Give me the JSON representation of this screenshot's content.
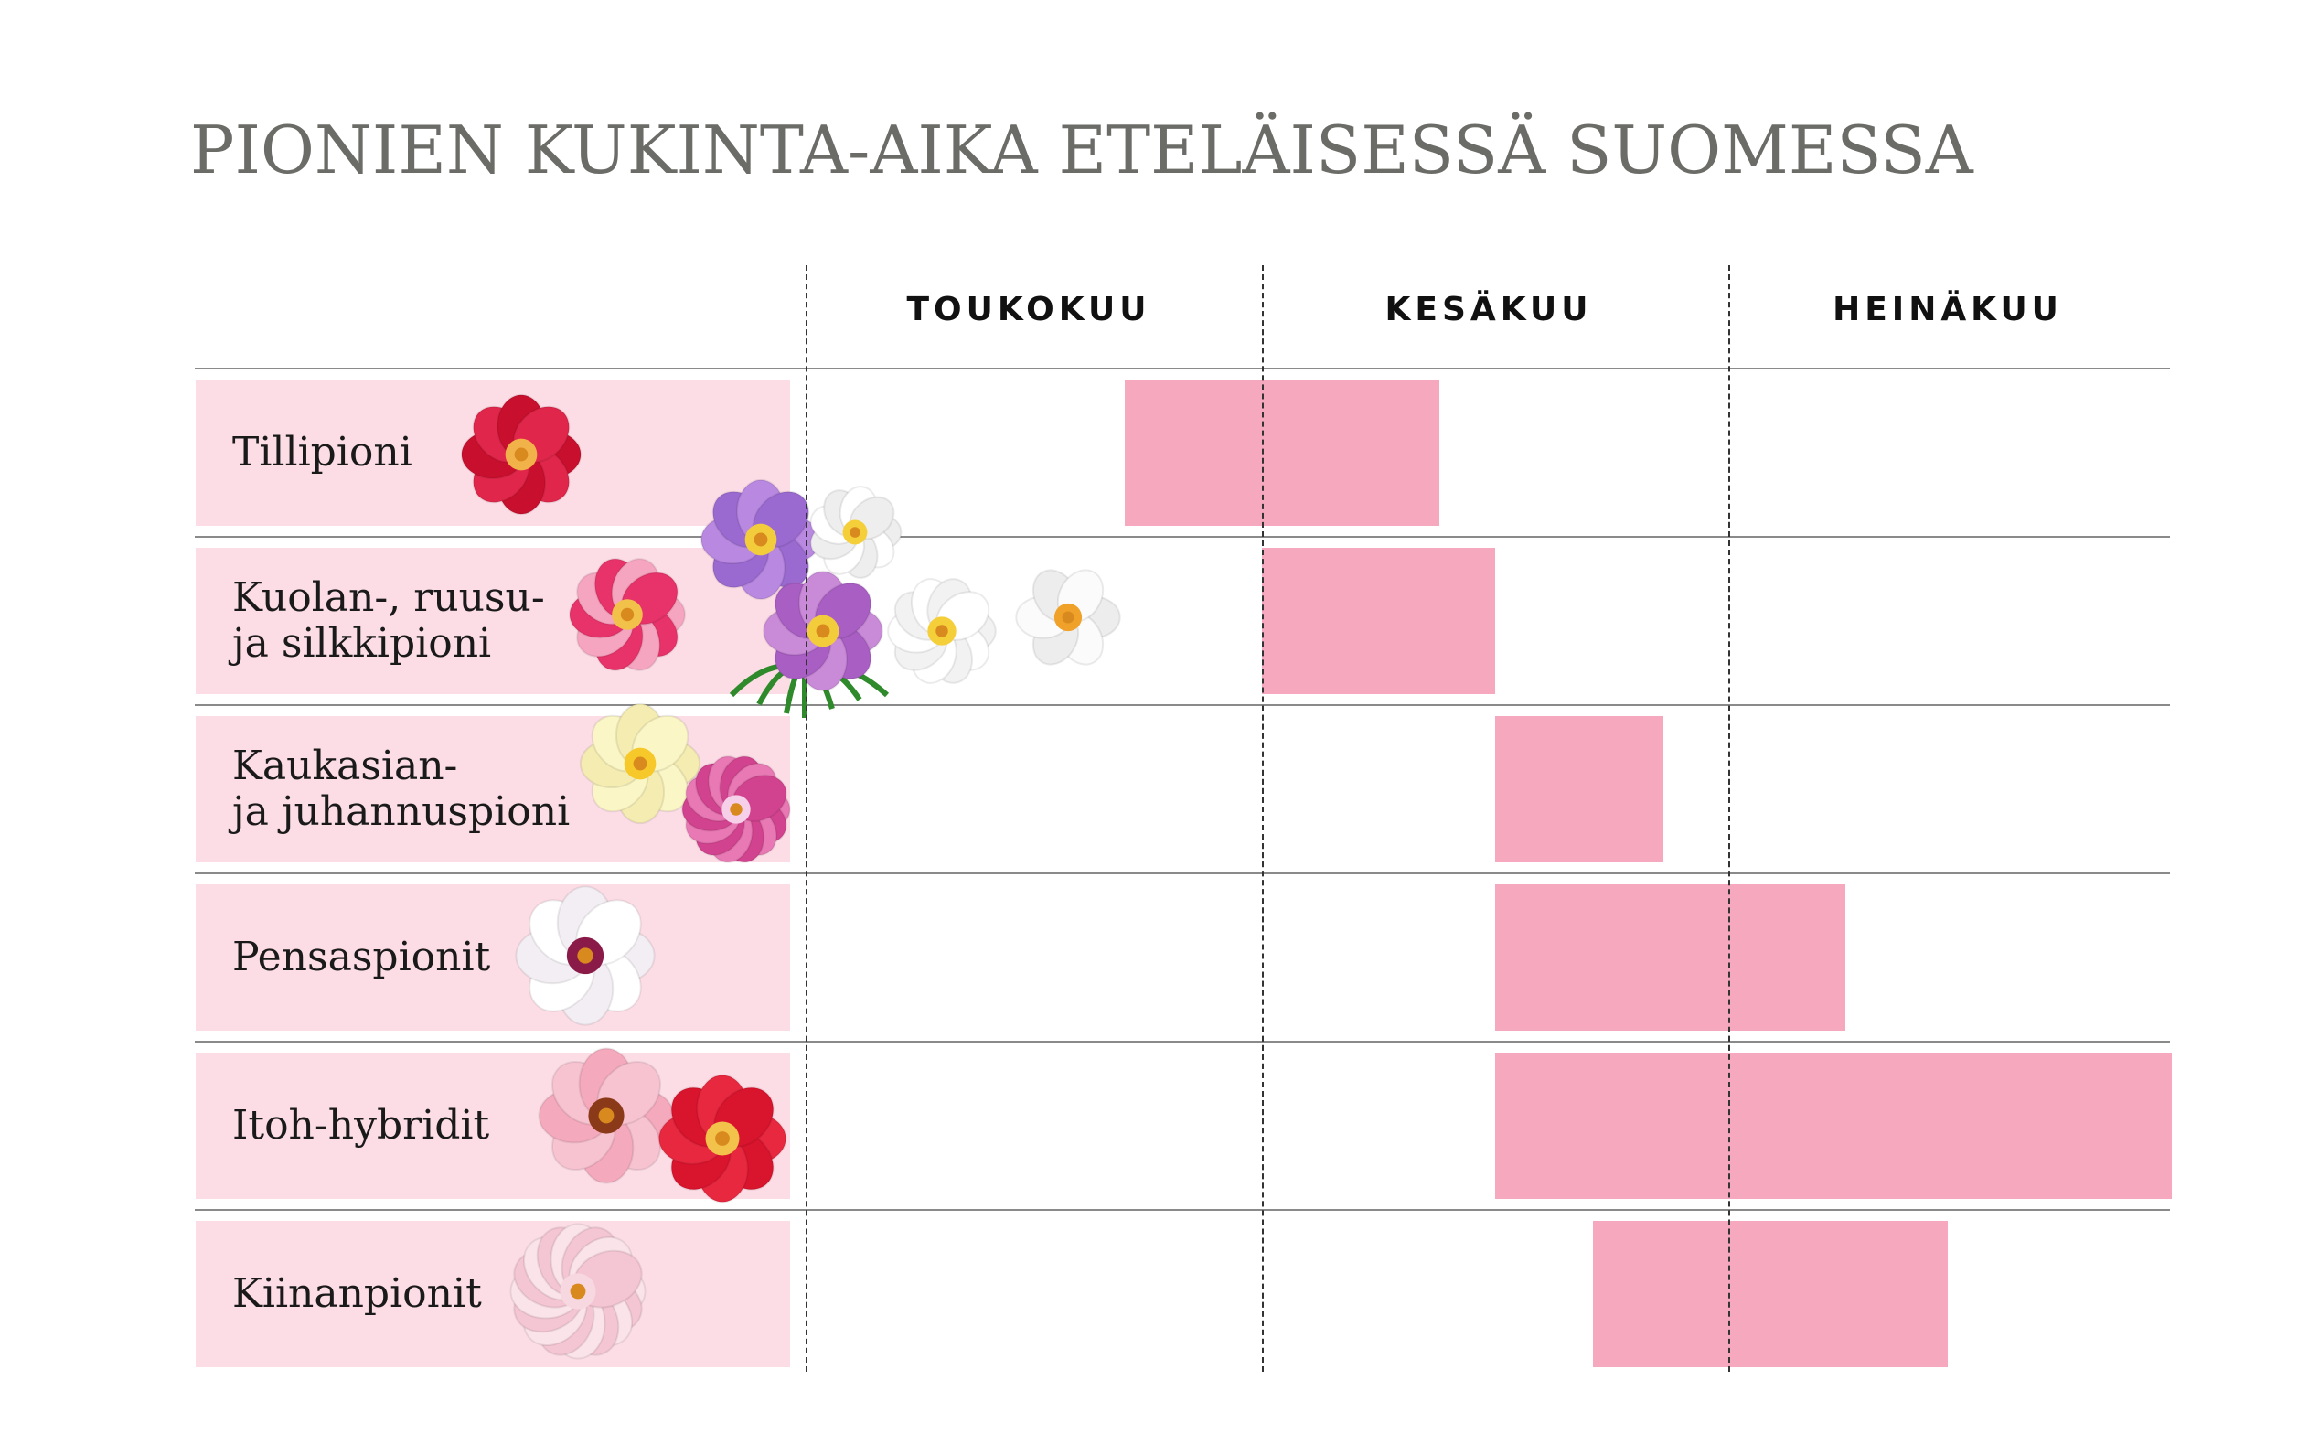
{
  "chart_data": {
    "type": "bar",
    "orientation": "horizontal-gantt",
    "title": "PIONIEN KUKINTA-AIKA ETELÄISESSÄ SUOMESSA",
    "months": [
      "TOUKOKUU",
      "KESÄKUU",
      "HEINÄKUU"
    ],
    "categories": [
      "Tillipioni",
      "Kuolan-, ruusu-\nja silkkipioni",
      "Kaukasian-\nja juhannuspioni",
      "Pensaspionit",
      "Itoh-hybridit",
      "Kiinanpionit"
    ],
    "bloom_periods": [
      {
        "start_month": 1.7,
        "end_month": 2.38
      },
      {
        "start_month": 2.0,
        "end_month": 2.5
      },
      {
        "start_month": 2.5,
        "end_month": 2.86
      },
      {
        "start_month": 2.5,
        "end_month": 3.25
      },
      {
        "start_month": 2.5,
        "end_month": 3.95
      },
      {
        "start_month": 2.71,
        "end_month": 3.47
      }
    ],
    "bar_color": "#f6a8bf",
    "label_background": "#fcdde6",
    "gridlines": "dashed month boundaries"
  },
  "icons": [
    "red-peony-icon",
    "pink-peony-icon",
    "peony-bouquet-icon",
    "yellow-peony-icon",
    "magenta-peony-icon",
    "white-peony-icon",
    "itoh-pink-peony-icon",
    "itoh-red-peony-icon",
    "double-pink-peony-icon",
    "white-single-peony-icon"
  ]
}
